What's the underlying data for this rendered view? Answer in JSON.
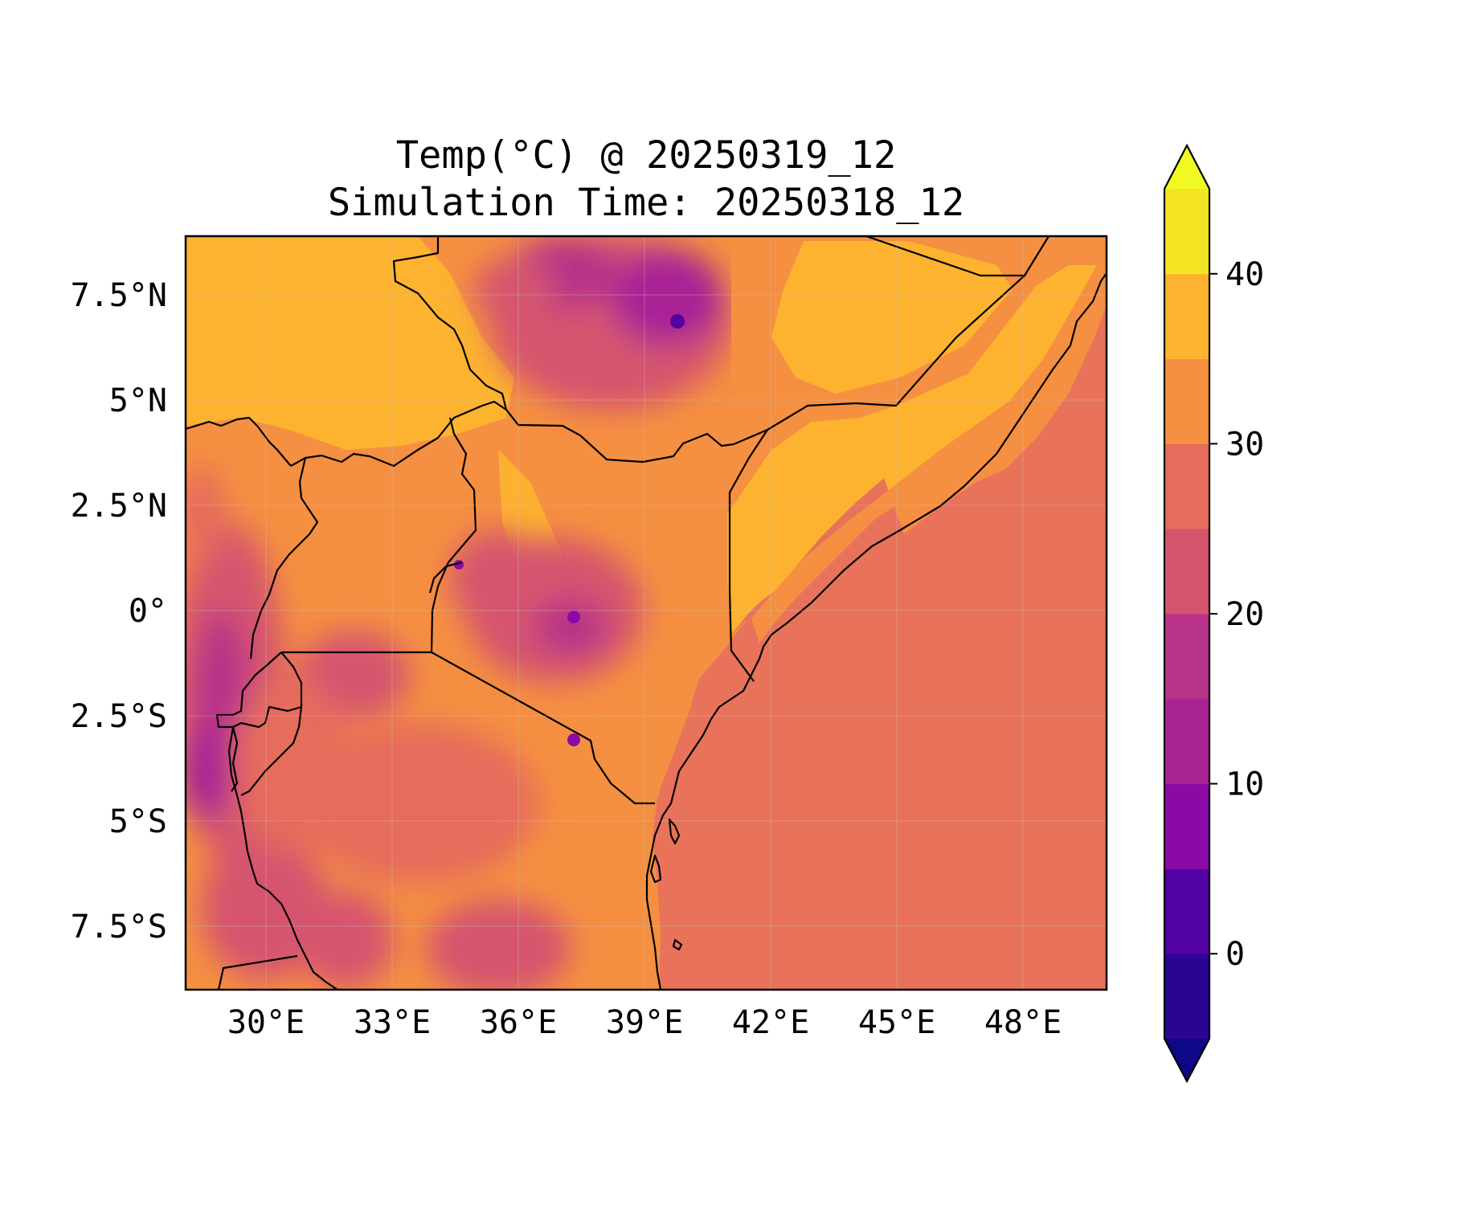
{
  "title": {
    "line1": "Temp(°C) @ 20250319_12",
    "line2": "Simulation Time: 20250318_12"
  },
  "map": {
    "region": "East Africa",
    "x_ticks": [
      "30°E",
      "33°E",
      "36°E",
      "39°E",
      "42°E",
      "45°E",
      "48°E"
    ],
    "y_ticks": [
      "7.5°N",
      "5°N",
      "2.5°N",
      "0°",
      "2.5°S",
      "5°S",
      "7.5°S"
    ],
    "lon_range": [
      28.1,
      50.0
    ],
    "lat_range": [
      -9.0,
      8.9
    ],
    "gridlines": true
  },
  "colorbar": {
    "levels": [
      -5,
      0,
      5,
      10,
      15,
      20,
      25,
      30,
      35,
      40,
      45
    ],
    "tick_values": [
      0,
      10,
      20,
      30,
      40
    ],
    "tick_labels": [
      "0",
      "10",
      "20",
      "30",
      "40"
    ],
    "extend": "both",
    "colors": [
      "#0d0887",
      "#2a0593",
      "#5302a3",
      "#8b0aa5",
      "#a92395",
      "#b83289",
      "#d5546e",
      "#e66c5c",
      "#f58f41",
      "#fdb32f",
      "#f3e521",
      "#f0f921"
    ],
    "under_color": "#0d0887",
    "over_color": "#f0f921"
  },
  "ocean_color": "#e8735a"
}
